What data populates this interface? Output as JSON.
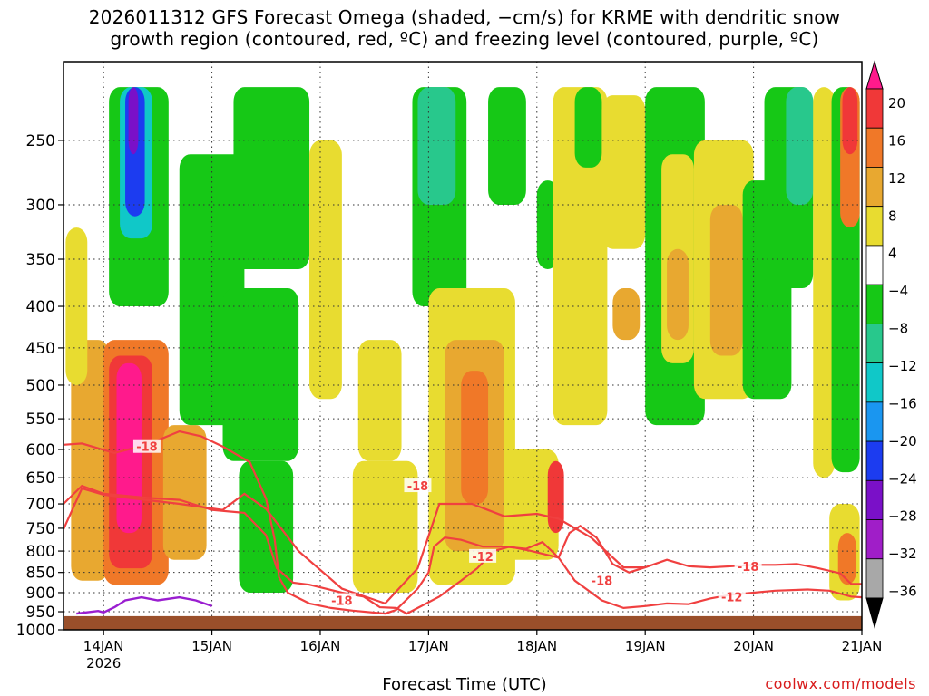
{
  "title_lines": [
    "2026011312 GFS Forecast Omega (shaded, −cm/s) for KRME with dendritic snow",
    "growth region (contoured, red, ºC) and freezing level (contoured, purple, ºC)"
  ],
  "xlabel": "Forecast Time (UTC)",
  "credit": "coolwx.com/models",
  "chart_data": {
    "type": "heatmap",
    "y_ticks": [
      250,
      300,
      350,
      400,
      450,
      500,
      550,
      600,
      650,
      700,
      750,
      800,
      850,
      900,
      950,
      1000
    ],
    "y_range": [
      200,
      1000
    ],
    "y_scale": "log-pressure",
    "x_ticks": [
      "14JAN",
      "15JAN",
      "16JAN",
      "17JAN",
      "18JAN",
      "19JAN",
      "20JAN",
      "21JAN"
    ],
    "x_tick_sublabel": "2026",
    "x_range_days": [
      13.63,
      21.0
    ],
    "grid": true,
    "colorbar": {
      "labels": [
        "20",
        "16",
        "12",
        "8",
        "4",
        "−4",
        "−8",
        "−12",
        "−16",
        "−20",
        "−24",
        "−28",
        "−32",
        "−36"
      ],
      "colors": [
        "#ff1a8c",
        "#f03838",
        "#f07828",
        "#e8a830",
        "#e8dc30",
        "#ffffff",
        "#16c816",
        "#28c88c",
        "#10c8c8",
        "#1a96f0",
        "#1c3cf0",
        "#7a10c8",
        "#a01ec8",
        "#a8a8a8",
        "#000000"
      ]
    },
    "contour_labels": [
      {
        "value": "-18",
        "day": 14.4,
        "p": 595
      },
      {
        "value": "-18",
        "day": 16.9,
        "p": 665
      },
      {
        "value": "-12",
        "day": 17.5,
        "p": 812
      },
      {
        "value": "-18",
        "day": 16.2,
        "p": 920
      },
      {
        "value": "-18",
        "day": 18.6,
        "p": 870
      },
      {
        "value": "-18",
        "day": 19.95,
        "p": 835
      },
      {
        "value": "-12",
        "day": 19.8,
        "p": 910
      }
    ],
    "dgz_upper": [
      [
        13.63,
        592
      ],
      [
        13.8,
        590
      ],
      [
        13.95,
        598
      ],
      [
        14.1,
        606
      ],
      [
        14.4,
        592
      ],
      [
        14.7,
        570
      ],
      [
        14.9,
        578
      ],
      [
        15.1,
        595
      ],
      [
        15.35,
        622
      ],
      [
        15.5,
        690
      ],
      [
        15.58,
        775
      ],
      [
        15.62,
        862
      ],
      [
        15.7,
        900
      ],
      [
        15.9,
        928
      ],
      [
        16.1,
        940
      ],
      [
        16.3,
        947
      ],
      [
        16.6,
        955
      ],
      [
        16.7,
        945
      ],
      [
        16.9,
        890
      ],
      [
        17.0,
        850
      ],
      [
        17.05,
        790
      ],
      [
        17.15,
        770
      ],
      [
        17.3,
        775
      ],
      [
        17.5,
        790
      ],
      [
        17.7,
        790
      ],
      [
        17.9,
        795
      ],
      [
        18.05,
        780
      ],
      [
        18.2,
        815
      ],
      [
        18.35,
        870
      ],
      [
        18.6,
        920
      ],
      [
        18.8,
        940
      ],
      [
        19.0,
        935
      ],
      [
        19.2,
        928
      ],
      [
        19.4,
        930
      ],
      [
        19.6,
        915
      ],
      [
        19.8,
        905
      ],
      [
        20.0,
        900
      ],
      [
        20.2,
        895
      ],
      [
        20.5,
        892
      ],
      [
        20.7,
        895
      ],
      [
        20.9,
        910
      ],
      [
        21.0,
        912
      ]
    ],
    "dgz_lower": [
      [
        13.63,
        700
      ],
      [
        13.8,
        665
      ],
      [
        14.0,
        680
      ],
      [
        14.4,
        688
      ],
      [
        14.7,
        692
      ],
      [
        15.0,
        712
      ],
      [
        15.3,
        718
      ],
      [
        15.5,
        765
      ],
      [
        15.6,
        840
      ],
      [
        15.75,
        875
      ],
      [
        15.9,
        880
      ],
      [
        16.05,
        890
      ],
      [
        16.2,
        900
      ],
      [
        16.4,
        910
      ],
      [
        16.55,
        938
      ],
      [
        16.7,
        940
      ],
      [
        16.8,
        955
      ],
      [
        16.9,
        940
      ],
      [
        17.1,
        910
      ],
      [
        17.3,
        870
      ],
      [
        17.45,
        840
      ],
      [
        17.6,
        800
      ],
      [
        17.75,
        790
      ],
      [
        17.95,
        800
      ],
      [
        18.2,
        815
      ],
      [
        18.3,
        760
      ],
      [
        18.4,
        745
      ],
      [
        18.55,
        770
      ],
      [
        18.7,
        830
      ],
      [
        18.85,
        850
      ],
      [
        19.0,
        838
      ],
      [
        19.2,
        820
      ],
      [
        19.4,
        835
      ],
      [
        19.6,
        838
      ],
      [
        19.8,
        835
      ],
      [
        20.0,
        832
      ],
      [
        20.2,
        832
      ],
      [
        20.4,
        830
      ],
      [
        20.6,
        840
      ],
      [
        20.8,
        852
      ],
      [
        20.9,
        878
      ],
      [
        21.0,
        878
      ]
    ],
    "dgz_mid": [
      [
        13.63,
        752
      ],
      [
        13.8,
        670
      ],
      [
        14.0,
        682
      ],
      [
        14.3,
        690
      ],
      [
        14.7,
        700
      ],
      [
        15.1,
        712
      ],
      [
        15.3,
        680
      ],
      [
        15.5,
        710
      ],
      [
        15.8,
        800
      ],
      [
        16.2,
        890
      ],
      [
        16.6,
        928
      ],
      [
        16.9,
        840
      ],
      [
        17.1,
        700
      ],
      [
        17.4,
        700
      ],
      [
        17.7,
        725
      ],
      [
        18.0,
        720
      ],
      [
        18.2,
        730
      ],
      [
        18.5,
        770
      ],
      [
        18.8,
        838
      ],
      [
        19.0,
        838
      ]
    ],
    "freezing_level": [
      [
        13.75,
        955
      ],
      [
        13.95,
        948
      ],
      [
        14.0,
        952
      ],
      [
        14.1,
        938
      ],
      [
        14.2,
        920
      ],
      [
        14.35,
        912
      ],
      [
        14.5,
        920
      ],
      [
        14.7,
        912
      ],
      [
        14.85,
        920
      ],
      [
        15.0,
        935
      ]
    ],
    "ground_p": 962,
    "blobs": [
      {
        "d0": 13.7,
        "d1": 14.05,
        "p0": 440,
        "p1": 870,
        "lv": 8
      },
      {
        "d0": 14.0,
        "d1": 14.6,
        "p0": 440,
        "p1": 880,
        "lv": 12
      },
      {
        "d0": 14.05,
        "d1": 14.45,
        "p0": 460,
        "p1": 840,
        "lv": 16
      },
      {
        "d0": 14.12,
        "d1": 14.35,
        "p0": 470,
        "p1": 760,
        "lv": 20
      },
      {
        "d0": 14.55,
        "d1": 14.95,
        "p0": 560,
        "p1": 820,
        "lv": 8
      },
      {
        "d0": 13.65,
        "d1": 13.85,
        "p0": 320,
        "p1": 500,
        "lv": 4
      },
      {
        "d0": 14.05,
        "d1": 14.6,
        "p0": 215,
        "p1": 400,
        "lv": -8
      },
      {
        "d0": 14.15,
        "d1": 14.45,
        "p0": 215,
        "p1": 330,
        "lv": -16
      },
      {
        "d0": 14.2,
        "d1": 14.38,
        "p0": 215,
        "p1": 310,
        "lv": -24
      },
      {
        "d0": 14.23,
        "d1": 14.32,
        "p0": 215,
        "p1": 260,
        "lv": -28
      },
      {
        "d0": 14.7,
        "d1": 15.3,
        "p0": 260,
        "p1": 560,
        "lv": -8
      },
      {
        "d0": 15.1,
        "d1": 15.8,
        "p0": 380,
        "p1": 620,
        "lv": -8
      },
      {
        "d0": 15.25,
        "d1": 15.75,
        "p0": 620,
        "p1": 900,
        "lv": -8
      },
      {
        "d0": 15.6,
        "d1": 15.85,
        "p0": 230,
        "p1": 330,
        "lv": 8
      },
      {
        "d0": 16.3,
        "d1": 16.9,
        "p0": 620,
        "p1": 900,
        "lv": 4
      },
      {
        "d0": 16.85,
        "d1": 17.35,
        "p0": 215,
        "p1": 400,
        "lv": -8
      },
      {
        "d0": 16.9,
        "d1": 17.25,
        "p0": 215,
        "p1": 300,
        "lv": -12
      },
      {
        "d0": 17.0,
        "d1": 17.8,
        "p0": 380,
        "p1": 880,
        "lv": 4
      },
      {
        "d0": 17.15,
        "d1": 17.7,
        "p0": 440,
        "p1": 800,
        "lv": 8
      },
      {
        "d0": 17.3,
        "d1": 17.55,
        "p0": 480,
        "p1": 700,
        "lv": 12
      },
      {
        "d0": 17.55,
        "d1": 17.9,
        "p0": 215,
        "p1": 300,
        "lv": -8
      },
      {
        "d0": 17.7,
        "d1": 18.2,
        "p0": 600,
        "p1": 820,
        "lv": 4
      },
      {
        "d0": 18.0,
        "d1": 18.2,
        "p0": 280,
        "p1": 360,
        "lv": -8
      },
      {
        "d0": 18.1,
        "d1": 18.25,
        "p0": 620,
        "p1": 760,
        "lv": 16
      },
      {
        "d0": 18.15,
        "d1": 18.65,
        "p0": 215,
        "p1": 560,
        "lv": 4
      },
      {
        "d0": 18.35,
        "d1": 18.6,
        "p0": 215,
        "p1": 270,
        "lv": -8
      },
      {
        "d0": 18.6,
        "d1": 19.0,
        "p0": 220,
        "p1": 340,
        "lv": 4
      },
      {
        "d0": 18.7,
        "d1": 18.95,
        "p0": 380,
        "p1": 440,
        "lv": 8
      },
      {
        "d0": 19.0,
        "d1": 19.55,
        "p0": 215,
        "p1": 560,
        "lv": -8
      },
      {
        "d0": 19.15,
        "d1": 19.45,
        "p0": 260,
        "p1": 470,
        "lv": 4
      },
      {
        "d0": 19.2,
        "d1": 19.4,
        "p0": 340,
        "p1": 440,
        "lv": 8
      },
      {
        "d0": 19.45,
        "d1": 20.0,
        "p0": 250,
        "p1": 520,
        "lv": 4
      },
      {
        "d0": 19.6,
        "d1": 19.9,
        "p0": 300,
        "p1": 460,
        "lv": 8
      },
      {
        "d0": 19.9,
        "d1": 20.35,
        "p0": 280,
        "p1": 520,
        "lv": -8
      },
      {
        "d0": 20.1,
        "d1": 20.55,
        "p0": 215,
        "p1": 380,
        "lv": -8
      },
      {
        "d0": 20.3,
        "d1": 20.55,
        "p0": 215,
        "p1": 300,
        "lv": -12
      },
      {
        "d0": 20.55,
        "d1": 20.75,
        "p0": 215,
        "p1": 650,
        "lv": 4
      },
      {
        "d0": 20.72,
        "d1": 20.98,
        "p0": 215,
        "p1": 640,
        "lv": -8
      },
      {
        "d0": 20.8,
        "d1": 20.98,
        "p0": 215,
        "p1": 320,
        "lv": 12
      },
      {
        "d0": 20.82,
        "d1": 20.96,
        "p0": 215,
        "p1": 260,
        "lv": 16
      },
      {
        "d0": 20.7,
        "d1": 20.98,
        "p0": 700,
        "p1": 920,
        "lv": 4
      },
      {
        "d0": 20.78,
        "d1": 20.95,
        "p0": 760,
        "p1": 880,
        "lv": 12
      },
      {
        "d0": 15.2,
        "d1": 15.9,
        "p0": 215,
        "p1": 360,
        "lv": -8
      },
      {
        "d0": 15.9,
        "d1": 16.2,
        "p0": 250,
        "p1": 520,
        "lv": 4
      },
      {
        "d0": 16.35,
        "d1": 16.75,
        "p0": 440,
        "p1": 620,
        "lv": 4
      }
    ]
  }
}
